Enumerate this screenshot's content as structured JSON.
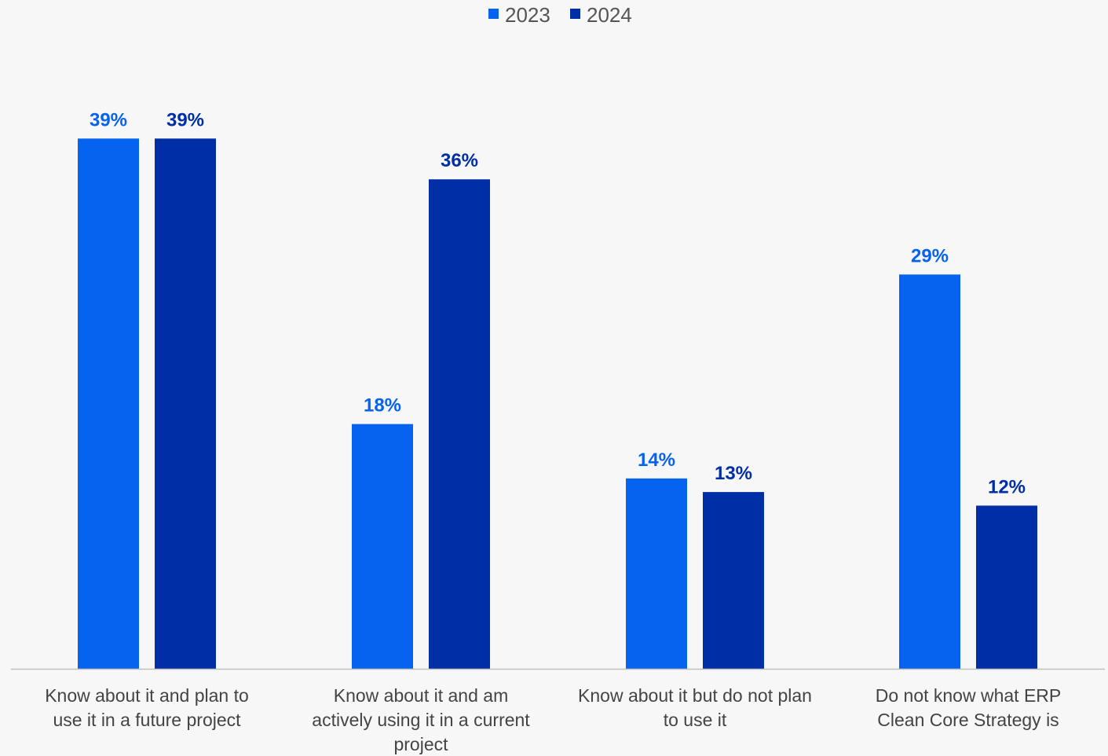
{
  "chart_data": {
    "type": "bar",
    "categories": [
      [
        "Know about it and plan to",
        "use it in a future project"
      ],
      [
        "Know about it and am",
        "actively using it in a current",
        "project"
      ],
      [
        "Know about it but do not plan",
        "to use it"
      ],
      [
        "Do not know what ERP",
        "Clean Core Strategy is"
      ]
    ],
    "series": [
      {
        "name": "2023",
        "color": "#0563f0",
        "values": [
          39,
          18,
          14,
          29
        ],
        "labels": [
          "39%",
          "18%",
          "14%",
          "29%"
        ]
      },
      {
        "name": "2024",
        "color": "#002ea6",
        "values": [
          39,
          36,
          13,
          12
        ],
        "labels": [
          "39%",
          "36%",
          "13%",
          "12%"
        ]
      }
    ],
    "legend_position": "top-center",
    "ylim": [
      0,
      40
    ],
    "grid": false,
    "colors": {
      "axis": "#bfbfbf",
      "category_text": "#444444",
      "legend_text": "#555555",
      "background": "#f7f7f7"
    }
  }
}
